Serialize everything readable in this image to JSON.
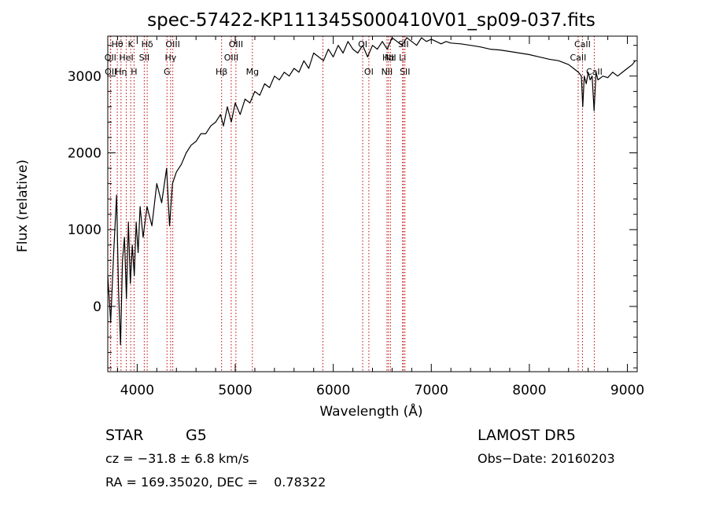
{
  "chart_data": {
    "type": "line",
    "title": "spec-57422-KP111345S000410V01_sp09-037.fits",
    "xlabel": "Wavelength (Å)",
    "ylabel": "Flux (relative)",
    "xlim": [
      3700,
      9100
    ],
    "ylim": [
      -850,
      3520
    ],
    "xticks": [
      {
        "value": 4000,
        "label": "4000"
      },
      {
        "value": 5000,
        "label": "5000"
      },
      {
        "value": 6000,
        "label": "6000"
      },
      {
        "value": 7000,
        "label": "7000"
      },
      {
        "value": 8000,
        "label": "8000"
      },
      {
        "value": 9000,
        "label": "9000"
      }
    ],
    "yticks": [
      {
        "value": 0,
        "label": "0"
      },
      {
        "value": 1000,
        "label": "1000"
      },
      {
        "value": 2000,
        "label": "2000"
      },
      {
        "value": 3000,
        "label": "3000"
      }
    ],
    "grid": false,
    "series": [
      {
        "color": "#000000",
        "x": [
          3700,
          3730,
          3760,
          3790,
          3810,
          3830,
          3850,
          3870,
          3890,
          3910,
          3930,
          3950,
          3970,
          3990,
          4010,
          4030,
          4060,
          4100,
          4150,
          4200,
          4250,
          4300,
          4330,
          4360,
          4400,
          4450,
          4500,
          4550,
          4600,
          4650,
          4700,
          4750,
          4800,
          4850,
          4880,
          4920,
          4960,
          5000,
          5050,
          5100,
          5150,
          5200,
          5250,
          5300,
          5350,
          5400,
          5450,
          5500,
          5550,
          5600,
          5650,
          5700,
          5750,
          5800,
          5850,
          5900,
          5950,
          6000,
          6050,
          6100,
          6150,
          6200,
          6250,
          6300,
          6350,
          6400,
          6450,
          6500,
          6550,
          6600,
          6650,
          6700,
          6750,
          6800,
          6850,
          6900,
          6950,
          7000,
          7050,
          7100,
          7150,
          7200,
          7300,
          7400,
          7500,
          7600,
          7700,
          7800,
          7900,
          8000,
          8100,
          8200,
          8300,
          8400,
          8450,
          8500,
          8530,
          8545,
          8560,
          8580,
          8600,
          8620,
          8640,
          8660,
          8680,
          8700,
          8750,
          8800,
          8850,
          8900,
          8950,
          9000,
          9050,
          9080
        ],
        "y": [
          400,
          -200,
          700,
          1450,
          200,
          -500,
          600,
          900,
          100,
          1100,
          300,
          800,
          400,
          1100,
          700,
          1300,
          900,
          1300,
          1050,
          1600,
          1350,
          1800,
          1050,
          1600,
          1750,
          1850,
          2000,
          2100,
          2150,
          2250,
          2250,
          2350,
          2400,
          2500,
          2350,
          2600,
          2400,
          2650,
          2500,
          2700,
          2650,
          2800,
          2750,
          2900,
          2850,
          3000,
          2950,
          3050,
          3000,
          3100,
          3050,
          3200,
          3100,
          3300,
          3250,
          3200,
          3350,
          3250,
          3400,
          3300,
          3450,
          3350,
          3300,
          3400,
          3250,
          3400,
          3350,
          3450,
          3350,
          3500,
          3450,
          3400,
          3500,
          3450,
          3400,
          3500,
          3450,
          3480,
          3450,
          3420,
          3450,
          3430,
          3420,
          3400,
          3380,
          3350,
          3340,
          3320,
          3300,
          3280,
          3250,
          3220,
          3200,
          3150,
          3100,
          3050,
          3000,
          2600,
          3000,
          2900,
          3050,
          2950,
          3000,
          2550,
          3050,
          2950,
          3000,
          2980,
          3050,
          3000,
          3050,
          3100,
          3150,
          3200
        ]
      }
    ],
    "lines": [
      {
        "x": 3797,
        "label": "Hθ",
        "row": 0
      },
      {
        "x": 3727,
        "label": "OII",
        "row": 1
      },
      {
        "x": 3835,
        "label": "Hη",
        "row": 2
      },
      {
        "x": 3730,
        "label": "OII",
        "row": 2
      },
      {
        "x": 3889,
        "label": "HeI",
        "row": 1
      },
      {
        "x": 3934,
        "label": "K",
        "row": 0
      },
      {
        "x": 3968,
        "label": "H",
        "row": 2
      },
      {
        "x": 4072,
        "label": "SII",
        "row": 1
      },
      {
        "x": 4102,
        "label": "Hδ",
        "row": 0
      },
      {
        "x": 4304,
        "label": "G",
        "row": 2
      },
      {
        "x": 4341,
        "label": "Hγ",
        "row": 1
      },
      {
        "x": 4363,
        "label": "OIII",
        "row": 0
      },
      {
        "x": 4861,
        "label": "Hβ",
        "row": 2
      },
      {
        "x": 4959,
        "label": "OIII",
        "row": 1
      },
      {
        "x": 5007,
        "label": "OIII",
        "row": 0
      },
      {
        "x": 5175,
        "label": "Mg",
        "row": 2
      },
      {
        "x": 5894,
        "label": "",
        "row": 0
      },
      {
        "x": 6300,
        "label": "OI",
        "row": 0
      },
      {
        "x": 6363,
        "label": "OI",
        "row": 2
      },
      {
        "x": 6548,
        "label": "NII",
        "row": 2
      },
      {
        "x": 6563,
        "label": "Hα",
        "row": 1
      },
      {
        "x": 6583,
        "label": "NII",
        "row": 1
      },
      {
        "x": 6707,
        "label": "Li",
        "row": 1
      },
      {
        "x": 6716,
        "label": "SII",
        "row": 0
      },
      {
        "x": 6731,
        "label": "SII",
        "row": 2
      },
      {
        "x": 8498,
        "label": "CaII",
        "row": 1
      },
      {
        "x": 8542,
        "label": "CaII",
        "row": 0
      },
      {
        "x": 8662,
        "label": "CaII",
        "row": 2
      }
    ]
  },
  "info": {
    "object_class": "STAR",
    "subclass": "G5",
    "survey": "LAMOST DR5",
    "redshift": "cz = −31.8 ± 6.8 km/s",
    "obs_date": "Obs−Date: 20160203",
    "coordinates": "RA = 169.35020, DEC =    0.78322"
  }
}
